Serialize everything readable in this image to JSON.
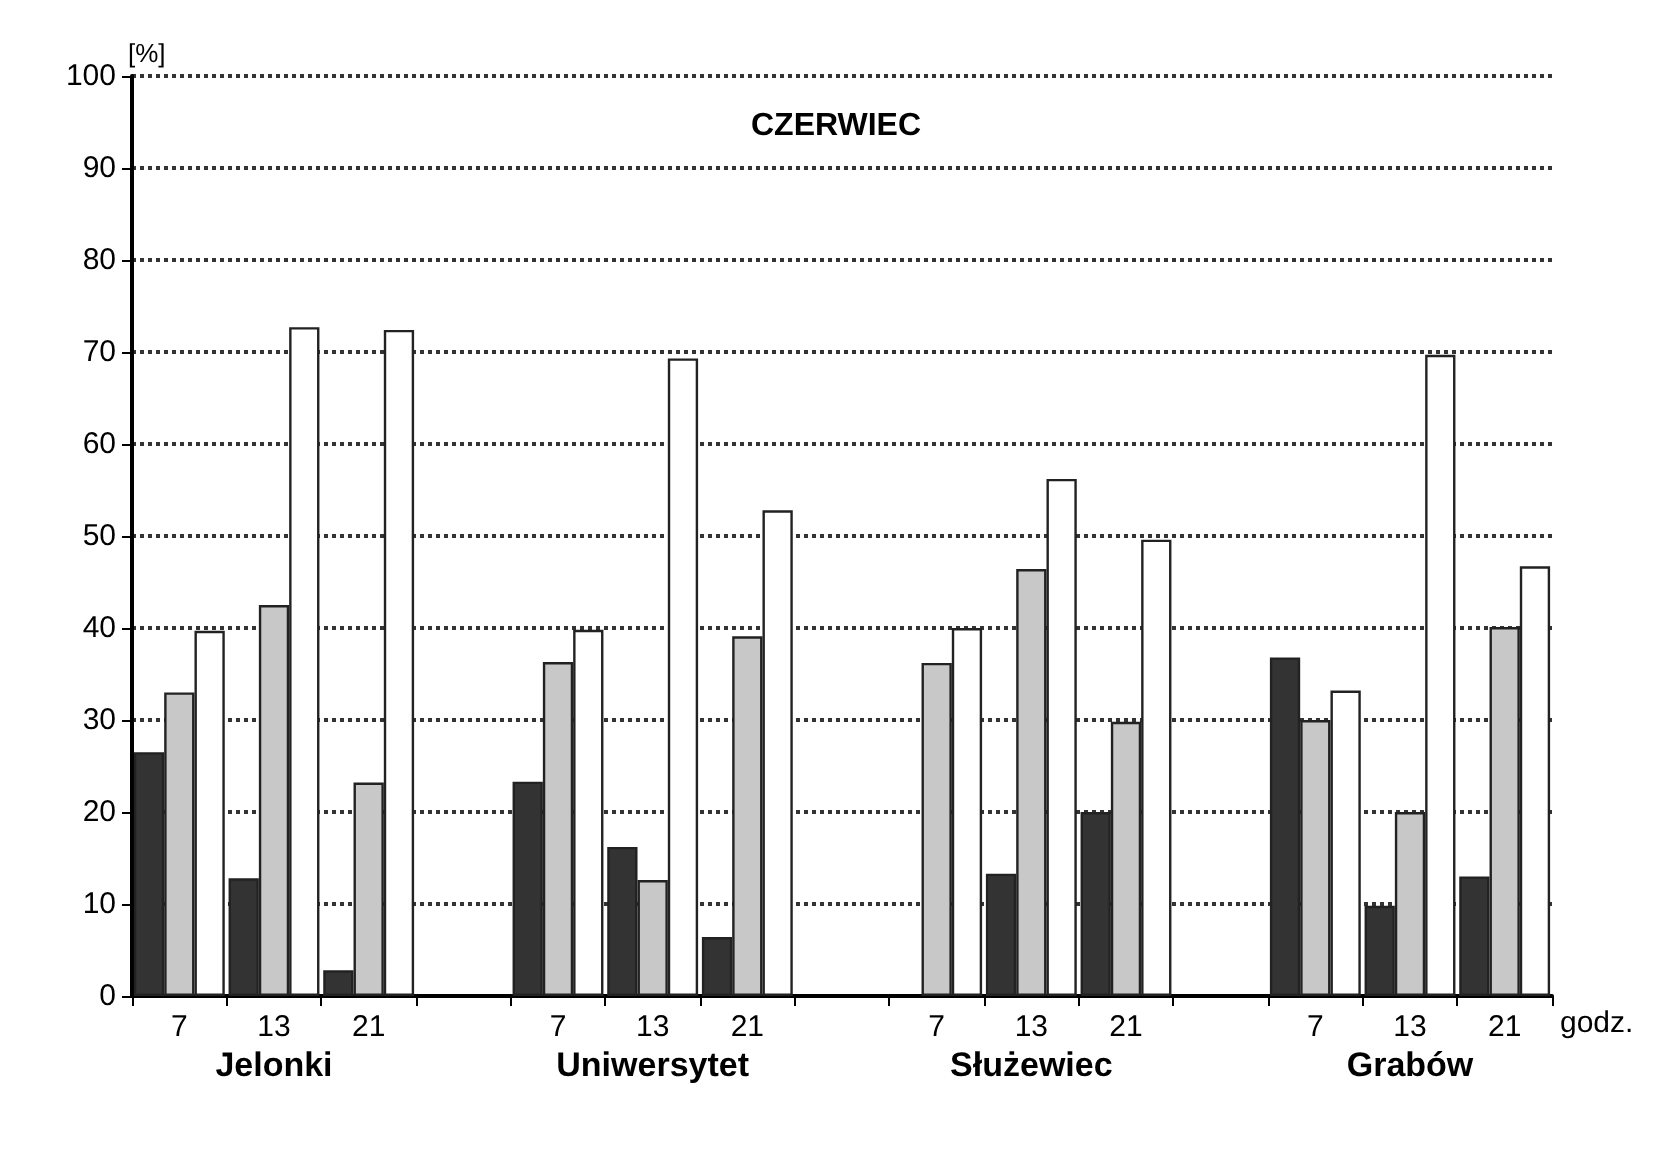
{
  "chart_data": {
    "type": "bar",
    "title": "CZERWIEC",
    "xlabel": "godz.",
    "ylabel": "[%]",
    "categories": [
      "7",
      "13",
      "21",
      null,
      "7",
      "13",
      "21",
      null,
      "7",
      "13",
      "21",
      null,
      "7",
      "13",
      "21"
    ],
    "annotations": [
      "Jelonki",
      "Uniwersytet",
      "Służewiec",
      "Grabów"
    ],
    "series": [
      {
        "color": "#333333",
        "values": [
          26.5,
          12.8,
          2.8,
          null,
          23.3,
          16.2,
          6.4,
          null,
          null,
          13.3,
          20,
          null,
          36.8,
          9.8,
          13
        ]
      },
      {
        "color": "#c8c8c8",
        "values": [
          33,
          42.5,
          23.2,
          null,
          36.3,
          12.6,
          39.1,
          null,
          36.2,
          46.4,
          29.8,
          null,
          30,
          20,
          40.1
        ]
      },
      {
        "color": "#ffffff",
        "values": [
          39.7,
          72.7,
          72.4,
          null,
          39.8,
          69.3,
          52.8,
          null,
          40,
          56.2,
          49.6,
          null,
          33.2,
          69.7,
          46.7
        ]
      }
    ],
    "ylim": [
      0,
      100
    ],
    "yticks": [
      0,
      10,
      20,
      30,
      40,
      50,
      60,
      70,
      80,
      90,
      100
    ],
    "grid": "y"
  }
}
